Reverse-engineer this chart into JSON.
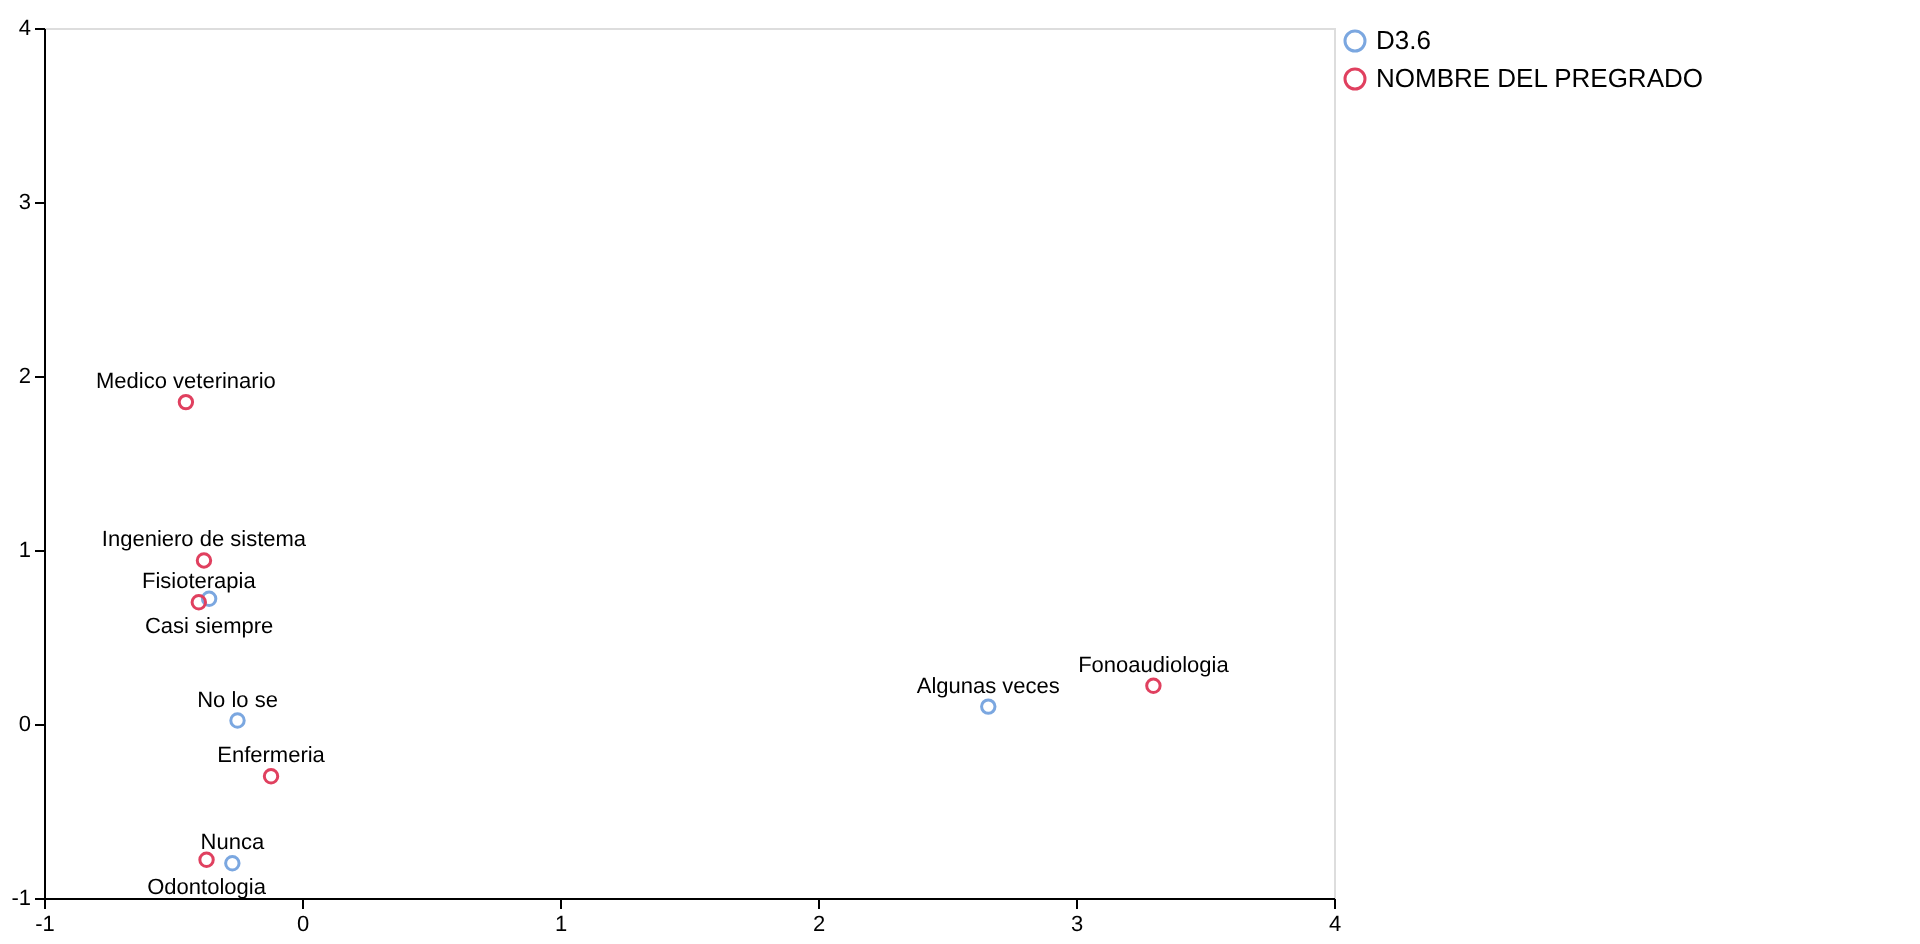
{
  "chart_data": {
    "type": "scatter",
    "xlim": [
      -1,
      4
    ],
    "ylim": [
      -1,
      4
    ],
    "xticks": [
      -1,
      0,
      1,
      2,
      3,
      4
    ],
    "yticks": [
      -1,
      0,
      1,
      2,
      3,
      4
    ],
    "grid": false,
    "legend": "top right",
    "marker": "circle",
    "series": [
      {
        "name": "D3.6",
        "color": "#7ba7e0",
        "x": [
          -0.36,
          -0.25,
          2.66,
          -0.27
        ],
        "values": [
          0.72,
          0.02,
          0.1,
          -0.8
        ]
      },
      {
        "name": "NOMBRE DEL PREGRADO",
        "color": "#e0405f",
        "x": [
          -0.45,
          -0.38,
          -0.4,
          -0.12,
          3.3,
          -0.37
        ],
        "values": [
          1.85,
          0.94,
          0.7,
          -0.3,
          0.22,
          -0.78
        ]
      }
    ],
    "annotations": [
      {
        "text": "Medico veterinario",
        "x": -0.45,
        "y": 1.85
      },
      {
        "text": "Ingeniero de sistema",
        "x": -0.38,
        "y": 0.94
      },
      {
        "text": "Fisioterapia",
        "x": -0.4,
        "y": 0.7
      },
      {
        "text": "Casi siempre",
        "x": -0.36,
        "y": 0.72
      },
      {
        "text": "No lo se",
        "x": -0.25,
        "y": 0.02
      },
      {
        "text": "Enfermeria",
        "x": -0.12,
        "y": -0.3
      },
      {
        "text": "Algunas veces",
        "x": 2.66,
        "y": 0.1
      },
      {
        "text": "Fonoaudiologia",
        "x": 3.3,
        "y": 0.22
      },
      {
        "text": "Nunca",
        "x": -0.27,
        "y": -0.8
      },
      {
        "text": "Odontologia",
        "x": -0.37,
        "y": -0.78
      }
    ]
  }
}
